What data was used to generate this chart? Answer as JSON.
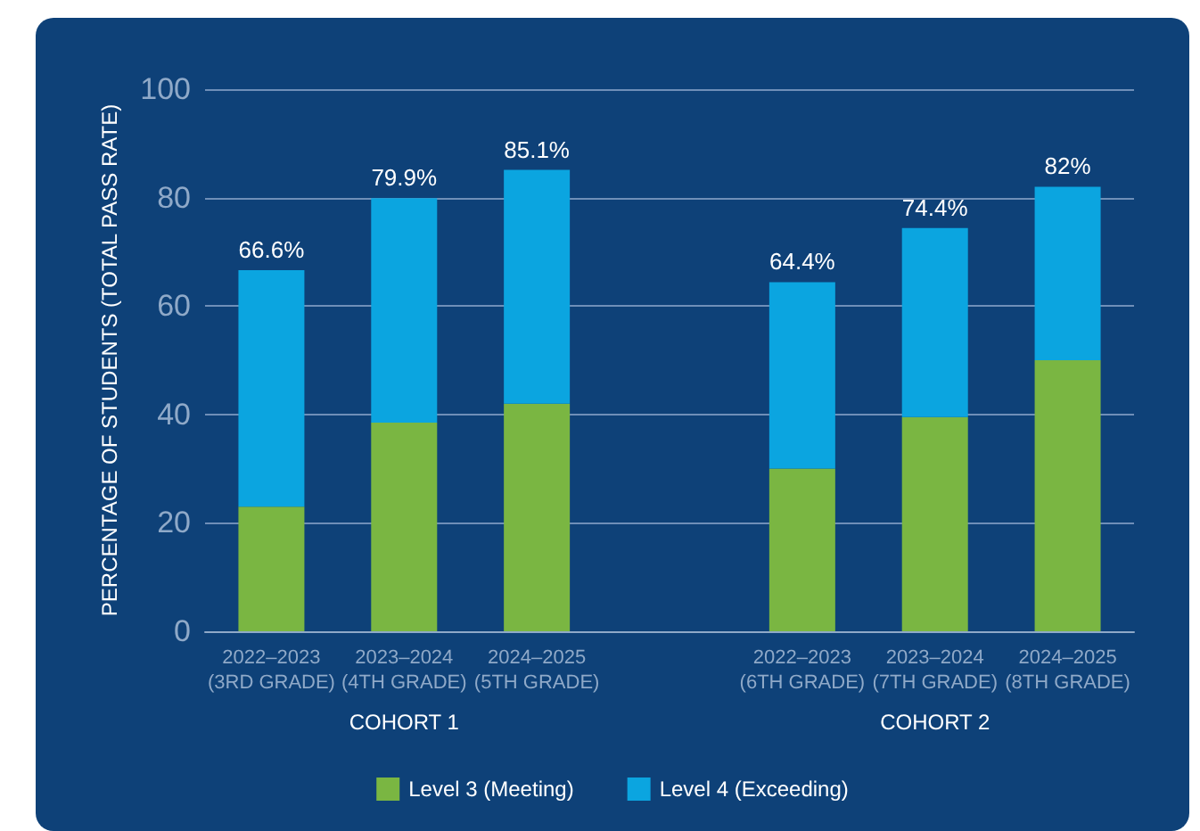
{
  "chart_data": {
    "type": "bar",
    "stacked": true,
    "ylabel": "PERCENTAGE OF STUDENTS (TOTAL PASS RATE)",
    "categories": [
      "2022–2023\n(3RD GRADE)",
      "2023–2024\n(4TH GRADE)",
      "2024–2025\n(5TH GRADE)",
      null,
      "2022–2023\n(6TH GRADE)",
      "2023–2024\n(7TH GRADE)",
      "2024–2025\n(8TH GRADE)"
    ],
    "series": [
      {
        "name": "Level 3 (Meeting)",
        "color": "#7ab642",
        "values": [
          23,
          38.5,
          42,
          null,
          30,
          39.5,
          50
        ]
      },
      {
        "name": "Level 4 (Exceeding)",
        "color": "#0ba5e0",
        "values": [
          43.6,
          41.4,
          43.1,
          null,
          34.4,
          34.9,
          32
        ]
      }
    ],
    "totals": [
      "66.6%",
      "79.9%",
      "85.1%",
      null,
      "64.4%",
      "74.4%",
      "82%"
    ],
    "annotations": [
      "COHORT 1",
      "COHORT 2"
    ],
    "ylim": [
      0,
      100
    ],
    "yticks": [
      0,
      20,
      40,
      60,
      80,
      100
    ],
    "grid": "y",
    "legend": "bottom"
  }
}
